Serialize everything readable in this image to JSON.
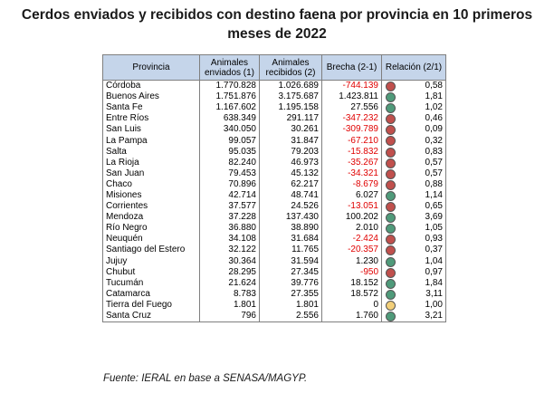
{
  "title": {
    "line1": "Cerdos enviados y recibidos con destino faena por provincia en 10 primeros",
    "line2": "meses de 2022"
  },
  "table": {
    "headers": {
      "provincia": "Provincia",
      "enviados_line1": "Animales",
      "enviados_line2": "enviados (1)",
      "recibidos_line1": "Animales",
      "recibidos_line2": "recibidos (2)",
      "brecha": "Brecha (2-1)",
      "relacion": "Relación (2/1)"
    },
    "rows": [
      {
        "provincia": "Córdoba",
        "enviados": "1.770.828",
        "recibidos": "1.026.689",
        "brecha": "-744.139",
        "relacion": "0,58",
        "indicator": "low"
      },
      {
        "provincia": "Buenos Aires",
        "enviados": "1.751.876",
        "recibidos": "3.175.687",
        "brecha": "1.423.811",
        "relacion": "1,81",
        "indicator": "high"
      },
      {
        "provincia": "Santa Fe",
        "enviados": "1.167.602",
        "recibidos": "1.195.158",
        "brecha": "27.556",
        "relacion": "1,02",
        "indicator": "high"
      },
      {
        "provincia": "Entre Ríos",
        "enviados": "638.349",
        "recibidos": "291.117",
        "brecha": "-347.232",
        "relacion": "0,46",
        "indicator": "low"
      },
      {
        "provincia": "San Luis",
        "enviados": "340.050",
        "recibidos": "30.261",
        "brecha": "-309.789",
        "relacion": "0,09",
        "indicator": "low"
      },
      {
        "provincia": "La Pampa",
        "enviados": "99.057",
        "recibidos": "31.847",
        "brecha": "-67.210",
        "relacion": "0,32",
        "indicator": "low"
      },
      {
        "provincia": "Salta",
        "enviados": "95.035",
        "recibidos": "79.203",
        "brecha": "-15.832",
        "relacion": "0,83",
        "indicator": "low"
      },
      {
        "provincia": "La Rioja",
        "enviados": "82.240",
        "recibidos": "46.973",
        "brecha": "-35.267",
        "relacion": "0,57",
        "indicator": "low"
      },
      {
        "provincia": "San Juan",
        "enviados": "79.453",
        "recibidos": "45.132",
        "brecha": "-34.321",
        "relacion": "0,57",
        "indicator": "low"
      },
      {
        "provincia": "Chaco",
        "enviados": "70.896",
        "recibidos": "62.217",
        "brecha": "-8.679",
        "relacion": "0,88",
        "indicator": "low"
      },
      {
        "provincia": "Misiones",
        "enviados": "42.714",
        "recibidos": "48.741",
        "brecha": "6.027",
        "relacion": "1,14",
        "indicator": "high"
      },
      {
        "provincia": "Corrientes",
        "enviados": "37.577",
        "recibidos": "24.526",
        "brecha": "-13.051",
        "relacion": "0,65",
        "indicator": "low"
      },
      {
        "provincia": "Mendoza",
        "enviados": "37.228",
        "recibidos": "137.430",
        "brecha": "100.202",
        "relacion": "3,69",
        "indicator": "high"
      },
      {
        "provincia": "Río Negro",
        "enviados": "36.880",
        "recibidos": "38.890",
        "brecha": "2.010",
        "relacion": "1,05",
        "indicator": "high"
      },
      {
        "provincia": "Neuquén",
        "enviados": "34.108",
        "recibidos": "31.684",
        "brecha": "-2.424",
        "relacion": "0,93",
        "indicator": "low"
      },
      {
        "provincia": "Santiago del Estero",
        "enviados": "32.122",
        "recibidos": "11.765",
        "brecha": "-20.357",
        "relacion": "0,37",
        "indicator": "low"
      },
      {
        "provincia": "Jujuy",
        "enviados": "30.364",
        "recibidos": "31.594",
        "brecha": "1.230",
        "relacion": "1,04",
        "indicator": "high"
      },
      {
        "provincia": "Chubut",
        "enviados": "28.295",
        "recibidos": "27.345",
        "brecha": "-950",
        "relacion": "0,97",
        "indicator": "low"
      },
      {
        "provincia": "Tucumán",
        "enviados": "21.624",
        "recibidos": "39.776",
        "brecha": "18.152",
        "relacion": "1,84",
        "indicator": "high"
      },
      {
        "provincia": "Catamarca",
        "enviados": "8.783",
        "recibidos": "27.355",
        "brecha": "18.572",
        "relacion": "3,11",
        "indicator": "high"
      },
      {
        "provincia": "Tierra del Fuego",
        "enviados": "1.801",
        "recibidos": "1.801",
        "brecha": "0",
        "relacion": "1,00",
        "indicator": "eq"
      },
      {
        "provincia": "Santa Cruz",
        "enviados": "796",
        "recibidos": "2.556",
        "brecha": "1.760",
        "relacion": "3,21",
        "indicator": "high"
      }
    ]
  },
  "colors": {
    "header_bg": "#c5d5ea",
    "negative_text": "#e00000",
    "indicator_low": "#c0504d",
    "indicator_high": "#4f9a7a",
    "indicator_eq": "#f2cf7a"
  },
  "source": "Fuente: IERAL en base a SENASA/MAGYP."
}
